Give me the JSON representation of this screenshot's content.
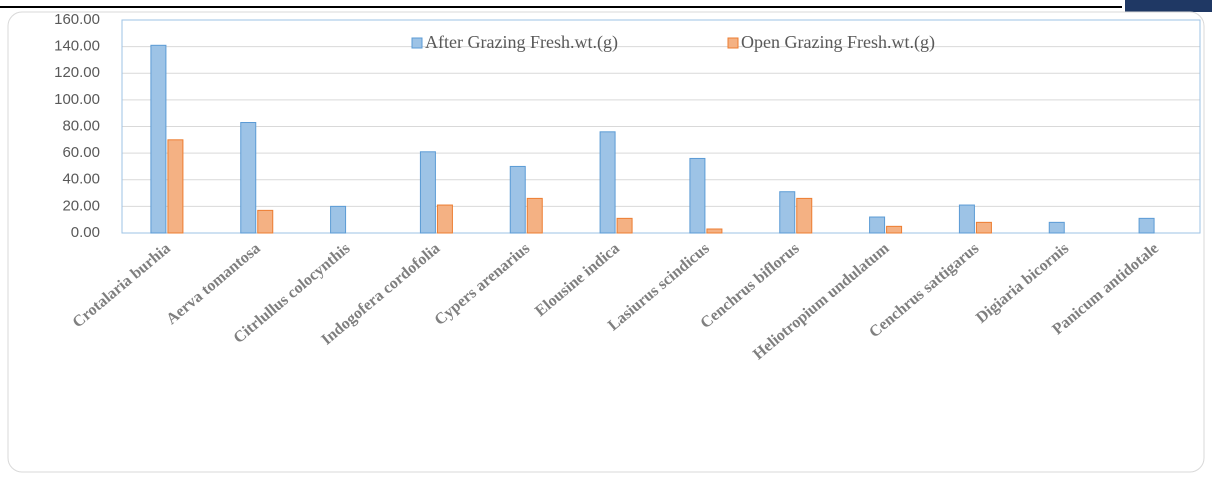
{
  "chart_data": {
    "type": "bar",
    "categories": [
      "Crotalaria burhia",
      "Aerva tomantosa",
      "Citrlullus colocynthis",
      "Indogofera cordofolia",
      "Cypers arenarius",
      "Elousine indica",
      "Lasiurus scindicus",
      "Cenchrus biflorus",
      "Heliotropium undulatum",
      "Cenchrus sattigarus",
      "Digiaria bicornis",
      "Panicum antidotale"
    ],
    "series": [
      {
        "name": "After Grazing Fresh.wt.(g)",
        "color": "#9dc3e6",
        "values": [
          141,
          83,
          20,
          61,
          50,
          76,
          56,
          31,
          12,
          21,
          8,
          11
        ]
      },
      {
        "name": "Open Grazing Fresh.wt.(g)",
        "color": "#f4b183",
        "values": [
          70,
          17,
          0,
          21,
          26,
          11,
          3,
          26,
          5,
          8,
          0,
          0
        ]
      }
    ],
    "ylim": [
      0,
      160
    ],
    "yticks": [
      {
        "value": 0,
        "label": "0.00"
      },
      {
        "value": 20,
        "label": "20.00"
      },
      {
        "value": 40,
        "label": "40.00"
      },
      {
        "value": 60,
        "label": "60.00"
      },
      {
        "value": 80,
        "label": "80.00"
      },
      {
        "value": 100,
        "label": "100.00"
      },
      {
        "value": 120,
        "label": "120.00"
      },
      {
        "value": 140,
        "label": "140.00"
      },
      {
        "value": 160,
        "label": "160.00"
      }
    ],
    "grid": true
  }
}
